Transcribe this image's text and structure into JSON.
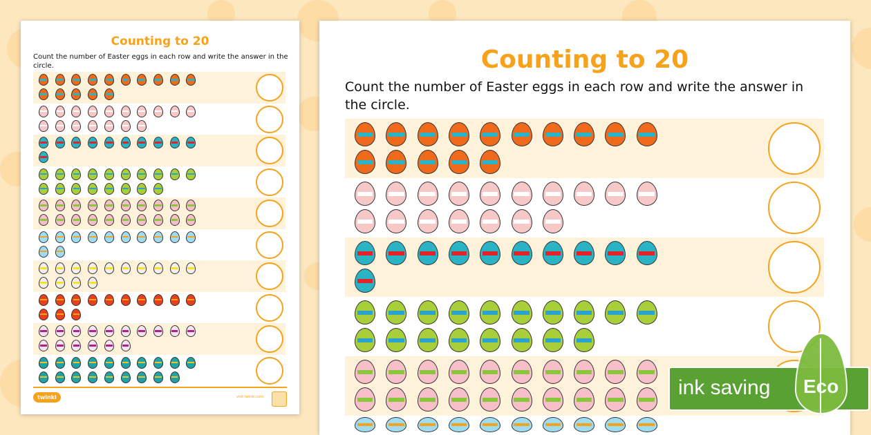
{
  "worksheet": {
    "title": "Counting to 20",
    "instructions": "Count the number of Easter eggs in each row and write the answer in the circle.",
    "rows": [
      {
        "count": 15,
        "egg_color": "#f06a1c",
        "band_color": "#2ab3c4"
      },
      {
        "count": 17,
        "egg_color": "#f7c8c8",
        "band_color": "#ffffff"
      },
      {
        "count": 11,
        "egg_color": "#2ab3c4",
        "band_color": "#e0242a"
      },
      {
        "count": 18,
        "egg_color": "#a8cf3a",
        "band_color": "#2aa3d0"
      },
      {
        "count": 20,
        "egg_color": "#f7c0c8",
        "band_color": "#8cc63f"
      },
      {
        "count": 12,
        "egg_color": "#9fdcf2",
        "band_color": "#f7a21b"
      },
      {
        "count": 14,
        "egg_color": "#f2eef2",
        "band_color": "#f7e51b"
      },
      {
        "count": 13,
        "egg_color": "#e8401c",
        "band_color": "#f7a21b"
      },
      {
        "count": 16,
        "egg_color": "#f5e4ee",
        "band_color": "#b0208a"
      },
      {
        "count": 19,
        "egg_color": "#1ea3a8",
        "band_color": "#f7c21b"
      }
    ],
    "footer": {
      "logo": "twinkl",
      "url": "visit twinkl.com"
    }
  },
  "eco_badge": {
    "label": "ink saving",
    "leaf_text": "Eco",
    "color": "#5aa133"
  },
  "colors": {
    "accent": "#f7a21b",
    "background": "#fde7bf",
    "row_tint": "#fef2db"
  }
}
